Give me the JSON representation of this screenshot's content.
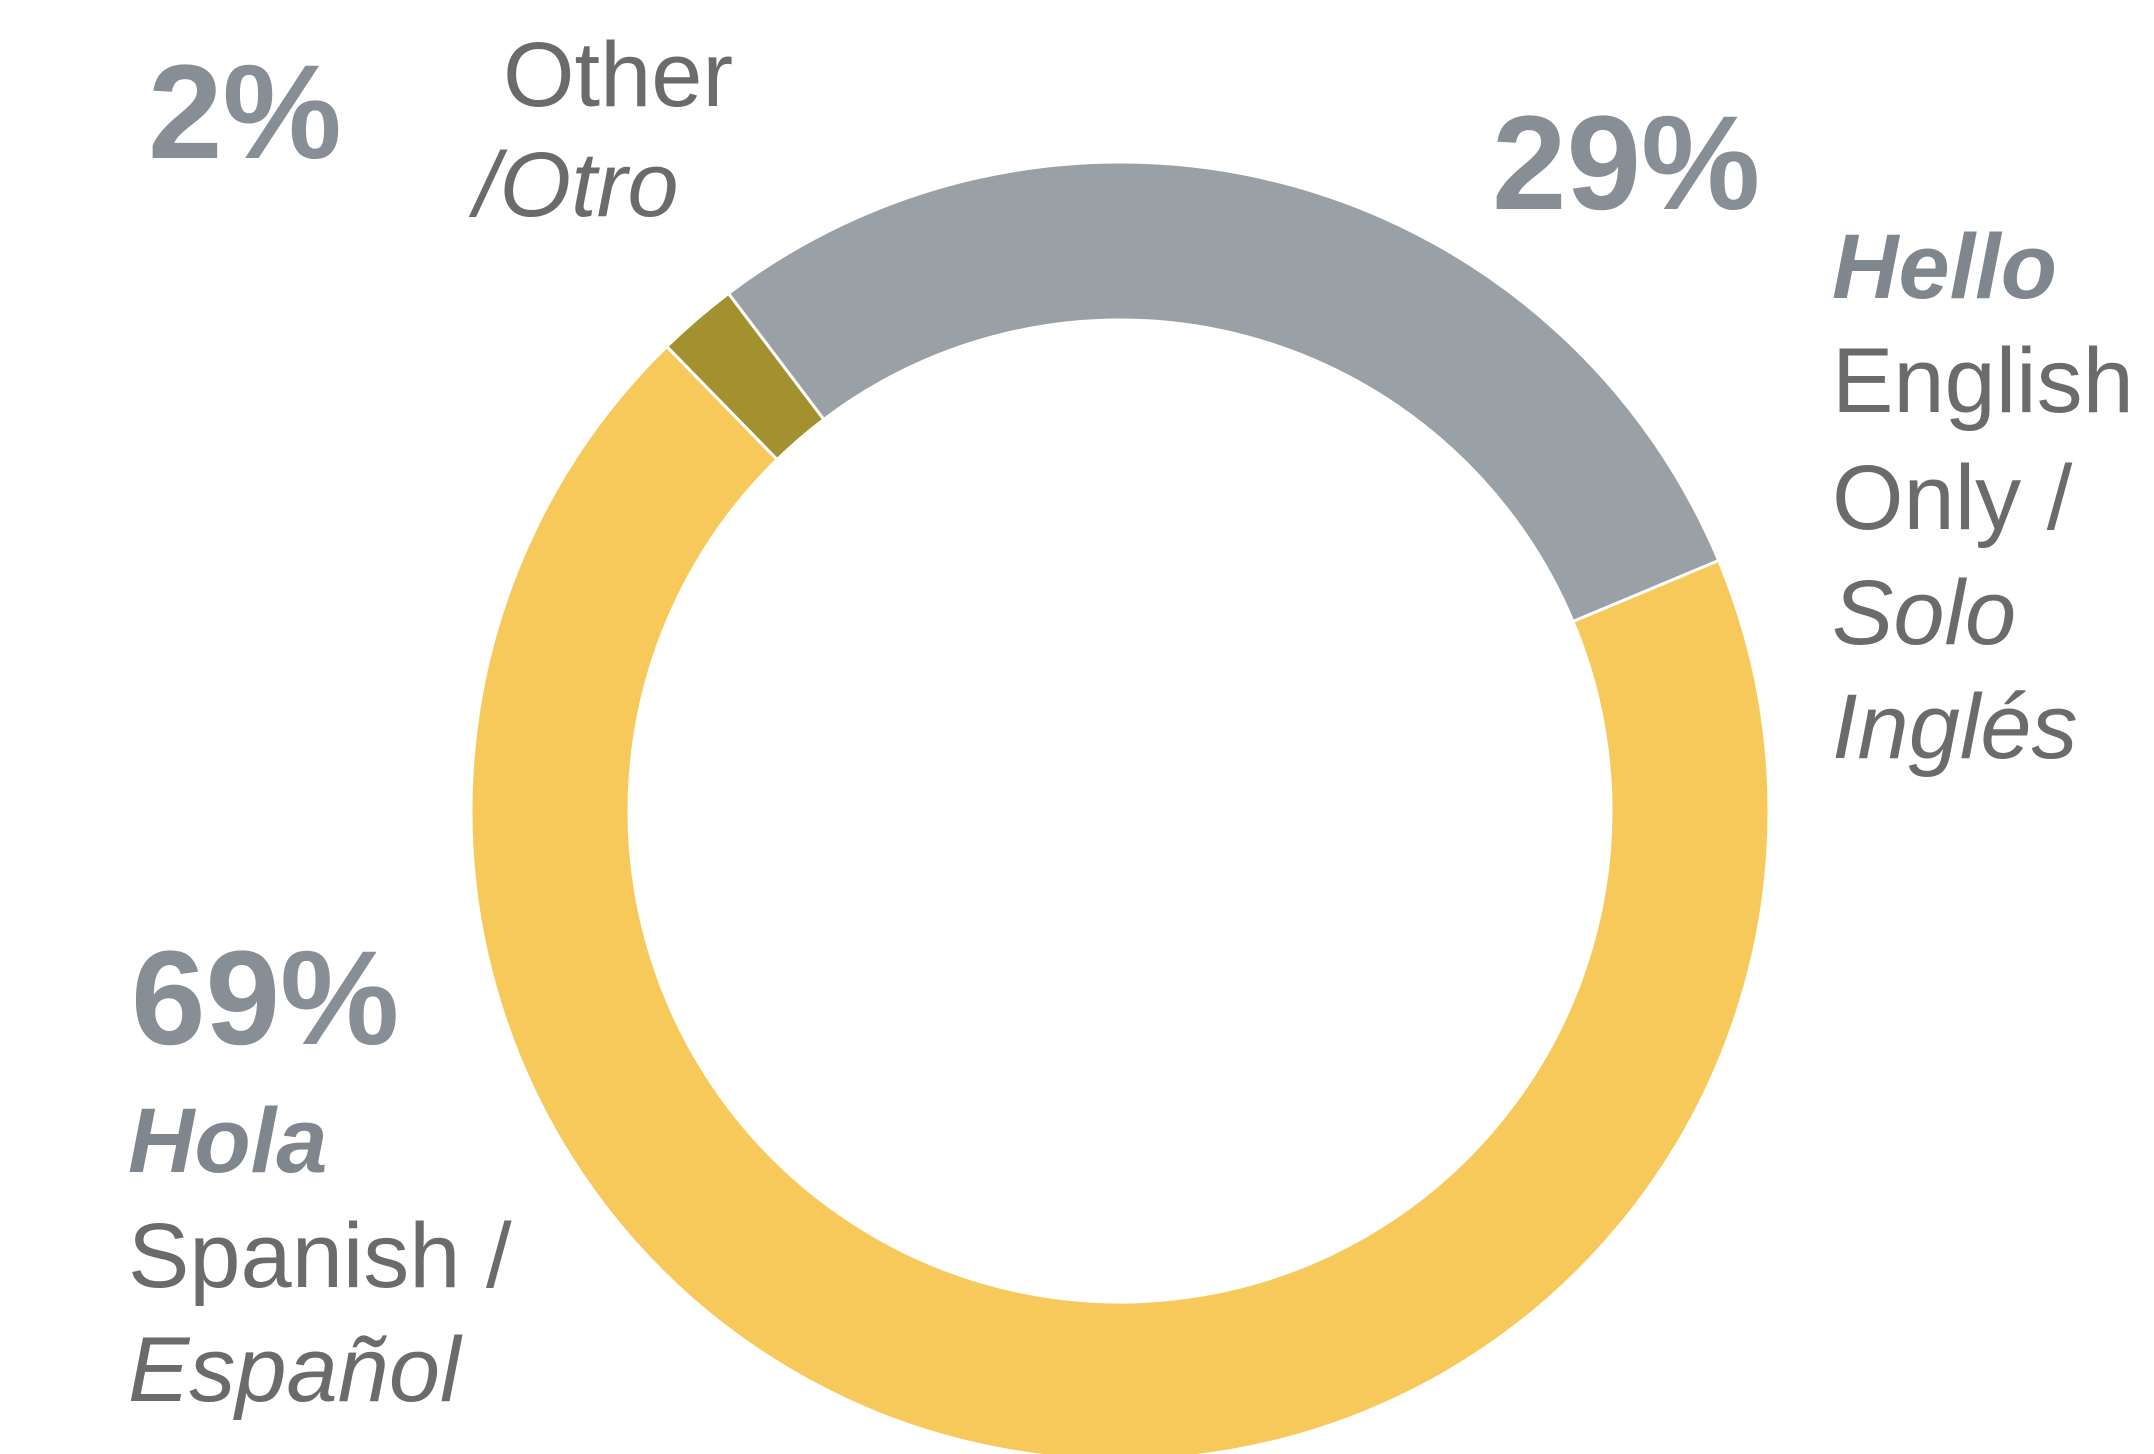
{
  "chart_data": {
    "type": "donut",
    "series": [
      {
        "name": "Other",
        "color": "#a39130",
        "values": [
          2
        ],
        "value_labels": [
          "2%"
        ],
        "label_lines": [
          "Other",
          "/Otro"
        ]
      },
      {
        "name": "Hello",
        "color": "#99a0a6",
        "values": [
          29
        ],
        "value_labels": [
          "29%"
        ],
        "label_lines": [
          "Hello",
          "English",
          "Only /",
          "Solo",
          "Inglés"
        ]
      },
      {
        "name": "Hola",
        "color": "#f7c85a",
        "values": [
          69
        ],
        "value_labels": [
          "69%"
        ],
        "label_lines": [
          "Hola",
          "Spanish /",
          "Español"
        ]
      }
    ]
  }
}
